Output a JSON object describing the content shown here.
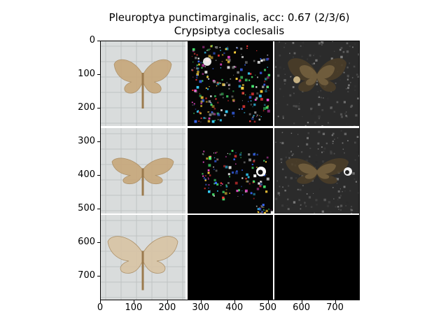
{
  "figure": {
    "title_line1": "Pleuroptya punctimarginalis, acc: 0.67 (2/3/6)",
    "title_line2": "Crypsiptya coclesalis",
    "y_ticks": [
      "0",
      "100",
      "200",
      "300",
      "400",
      "500",
      "600",
      "700"
    ],
    "x_ticks": [
      "0",
      "100",
      "200",
      "300",
      "400",
      "500",
      "600",
      "700"
    ],
    "y_tick_values": [
      0,
      100,
      200,
      300,
      400,
      500,
      600,
      700
    ],
    "x_tick_values": [
      0,
      100,
      200,
      300,
      400,
      500,
      600,
      700
    ],
    "extent": [
      0,
      774
    ],
    "grid_rows": 3,
    "grid_cols": 3
  },
  "colors": {
    "photo_background": "#d9dcdc",
    "saliency_background": "#050505",
    "overlay_background": "#2b2b2b",
    "moth_tan": "#c7a77a",
    "moth_light": "#d8c4a4"
  },
  "tiles": [
    {
      "row": 0,
      "col": 0,
      "kind": "photo",
      "icon": "moth-photo-icon"
    },
    {
      "row": 0,
      "col": 1,
      "kind": "saliency",
      "icon": "saliency-map-icon"
    },
    {
      "row": 0,
      "col": 2,
      "kind": "overlay",
      "icon": "overlay-icon"
    },
    {
      "row": 1,
      "col": 0,
      "kind": "photo",
      "icon": "moth-photo-icon"
    },
    {
      "row": 1,
      "col": 1,
      "kind": "saliency",
      "icon": "saliency-map-icon"
    },
    {
      "row": 1,
      "col": 2,
      "kind": "overlay",
      "icon": "overlay-icon"
    },
    {
      "row": 2,
      "col": 0,
      "kind": "photo",
      "icon": "moth-photo-icon"
    },
    {
      "row": 2,
      "col": 1,
      "kind": "empty",
      "icon": "empty-panel-icon"
    },
    {
      "row": 2,
      "col": 2,
      "kind": "empty",
      "icon": "empty-panel-icon"
    }
  ]
}
